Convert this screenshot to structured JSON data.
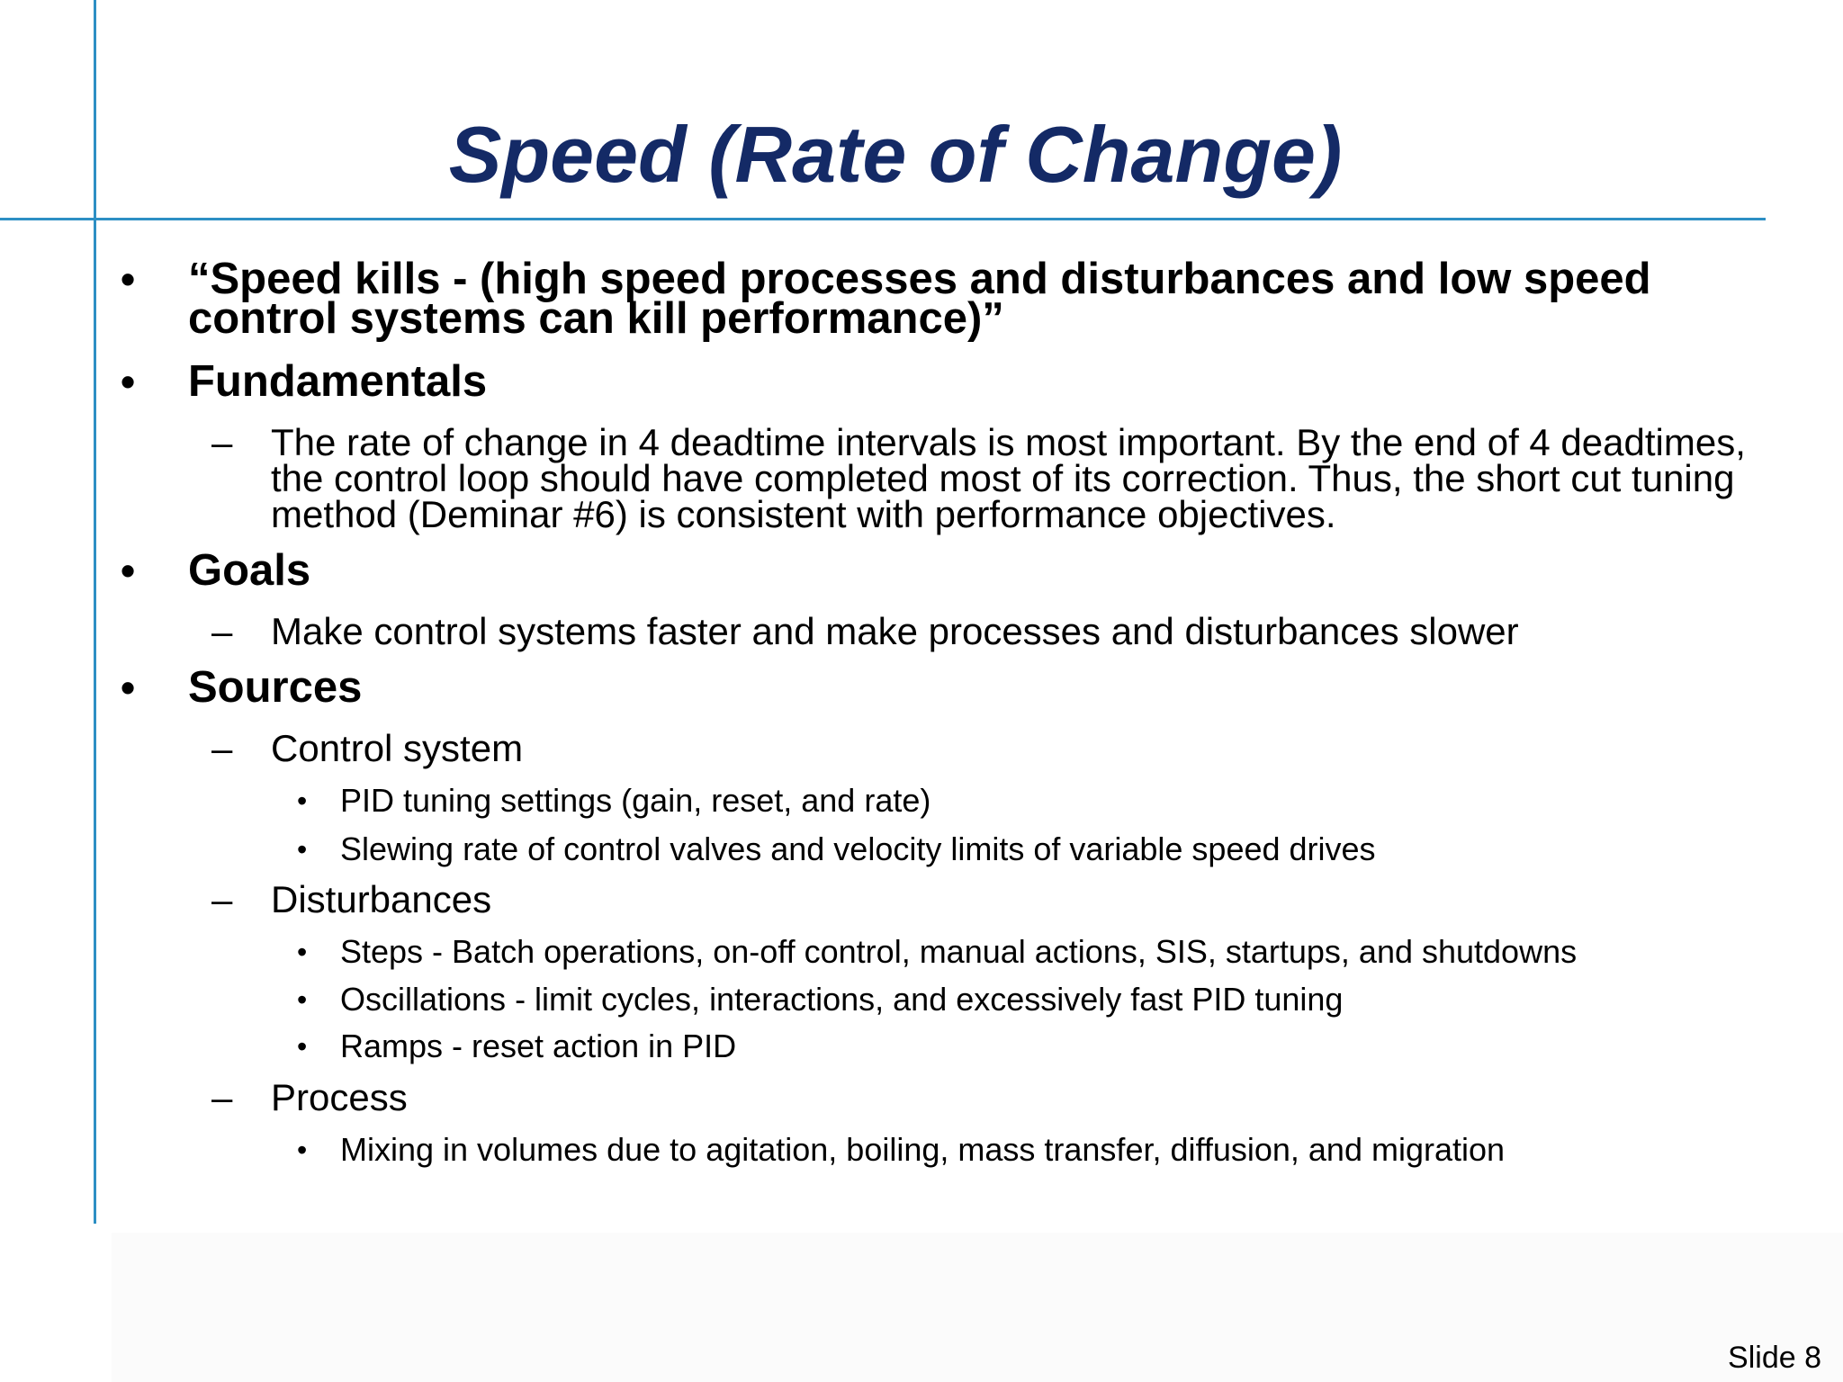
{
  "slide": {
    "title": "Speed (Rate of Change)",
    "footer": "Slide 8",
    "bullet_char": "•",
    "dash_char": "–",
    "sub_bullet_char": "•",
    "items": [
      {
        "level": 1,
        "text": "“Speed kills - (high speed processes and disturbances and low speed control systems can kill performance)”"
      },
      {
        "level": 1,
        "text": "Fundamentals"
      },
      {
        "level": 2,
        "text": "The rate of change in 4 deadtime intervals is most important. By the end of 4 deadtimes, the control loop should have completed most of its correction. Thus, the short cut tuning method (Deminar #6) is consistent with performance objectives."
      },
      {
        "level": 1,
        "text": "Goals"
      },
      {
        "level": 2,
        "text": "Make control systems faster and make processes and disturbances slower"
      },
      {
        "level": 1,
        "text": "Sources"
      },
      {
        "level": 2,
        "text": "Control system"
      },
      {
        "level": 3,
        "text": "PID tuning settings (gain, reset, and rate)"
      },
      {
        "level": 3,
        "text": "Slewing rate of control valves and velocity limits of variable speed drives"
      },
      {
        "level": 2,
        "text": "Disturbances"
      },
      {
        "level": 3,
        "text": "Steps - Batch operations, on-off control, manual actions, SIS, startups, and shutdowns"
      },
      {
        "level": 3,
        "text": "Oscillations - limit cycles, interactions, and excessively fast PID tuning"
      },
      {
        "level": 3,
        "text": "Ramps - reset action in PID"
      },
      {
        "level": 2,
        "text": "Process"
      },
      {
        "level": 3,
        "text": "Mixing in volumes due to agitation, boiling, mass transfer, diffusion, and migration"
      }
    ]
  }
}
